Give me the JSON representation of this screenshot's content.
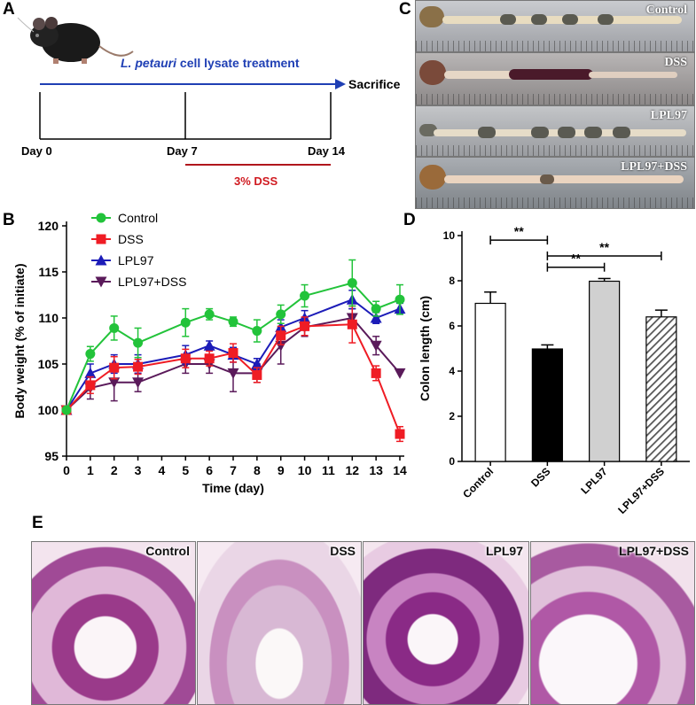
{
  "panel_a": {
    "label": "A",
    "treatment_italic": "L. petauri",
    "treatment_rest": " cell lysate treatment",
    "end_label": "Sacrifice",
    "days": [
      "Day 0",
      "Day 7",
      "Day 14"
    ],
    "dss_label": "3% DSS",
    "colors": {
      "arrow": "#1f3fb4",
      "dss": "#b0161c"
    }
  },
  "panel_c": {
    "label": "C",
    "strips": [
      "Control",
      "DSS",
      "LPL97",
      "LPL97+DSS"
    ]
  },
  "panel_e": {
    "label": "E",
    "sections": [
      "Control",
      "DSS",
      "LPL97",
      "LPL97+DSS"
    ]
  },
  "chart_data": [
    {
      "panel": "B",
      "type": "line",
      "xlabel": "Time (day)",
      "ylabel": "Body weight (% of initiate)",
      "x": [
        0,
        1,
        2,
        3,
        5,
        6,
        7,
        8,
        9,
        10,
        12,
        13,
        14
      ],
      "xticks": [
        0,
        1,
        2,
        3,
        4,
        5,
        6,
        7,
        8,
        9,
        10,
        11,
        12,
        13,
        14
      ],
      "yticks": [
        95,
        100,
        105,
        110,
        115,
        120
      ],
      "ylim": [
        95,
        120
      ],
      "xlim": [
        0,
        14
      ],
      "legend_position": "top-left",
      "series": [
        {
          "name": "Control",
          "color": "#22c33a",
          "marker": "circle",
          "values": [
            100,
            106.1,
            108.9,
            107.3,
            109.5,
            110.4,
            109.6,
            108.6,
            110.4,
            112.4,
            113.8,
            111.0,
            112.0
          ],
          "errors": [
            0,
            0.8,
            1.3,
            1.6,
            1.5,
            0.6,
            0.5,
            1.2,
            1.0,
            1.2,
            2.5,
            0.8,
            1.6
          ]
        },
        {
          "name": "DSS",
          "color": "#ef1c24",
          "marker": "square",
          "values": [
            100,
            102.7,
            104.6,
            104.7,
            105.6,
            105.6,
            106.2,
            103.8,
            108.1,
            109.1,
            109.3,
            104.0,
            97.4
          ],
          "errors": [
            0,
            0.9,
            1.2,
            0.8,
            1.0,
            0.8,
            1.0,
            0.8,
            1.0,
            1.0,
            2.0,
            0.8,
            0.8
          ]
        },
        {
          "name": "LPL97",
          "color": "#1c1cb8",
          "marker": "triangle-up",
          "values": [
            100,
            104.0,
            105.0,
            105.0,
            106.0,
            107.0,
            106.0,
            105.0,
            109.0,
            110.0,
            112.0,
            110.0,
            111.0
          ],
          "errors": [
            0,
            1.0,
            1.0,
            1.0,
            1.0,
            0.5,
            0.8,
            0.6,
            0.8,
            0.8,
            1.0,
            0.6,
            0.6
          ]
        },
        {
          "name": "LPL97+DSS",
          "color": "#5a1a5a",
          "marker": "triangle-down",
          "values": [
            100,
            102.4,
            103.0,
            103.0,
            105.0,
            105.0,
            104.0,
            104.0,
            107.0,
            109.0,
            110.0,
            107.0,
            104.0
          ],
          "errors": [
            0,
            1.2,
            2.0,
            1.0,
            1.0,
            1.0,
            2.0,
            1.0,
            2.0,
            1.0,
            1.0,
            1.0,
            0
          ]
        }
      ]
    },
    {
      "panel": "D",
      "type": "bar",
      "ylabel": "Colon length (cm)",
      "categories": [
        "Control",
        "DSS",
        "LPL97",
        "LPL97+DSS"
      ],
      "values": [
        7.0,
        4.98,
        7.98,
        6.4
      ],
      "errors": [
        0.5,
        0.18,
        0.12,
        0.3
      ],
      "fills": [
        "white",
        "black",
        "#d0d0d0",
        "hatch"
      ],
      "yticks": [
        0,
        2,
        4,
        6,
        8,
        10
      ],
      "ylim": [
        0,
        10
      ],
      "significance": [
        {
          "from": "Control",
          "to": "DSS",
          "label": "**"
        },
        {
          "from": "DSS",
          "to": "LPL97+DSS",
          "label": "**"
        },
        {
          "from": "DSS",
          "to": "LPL97",
          "label": "**"
        }
      ]
    }
  ]
}
